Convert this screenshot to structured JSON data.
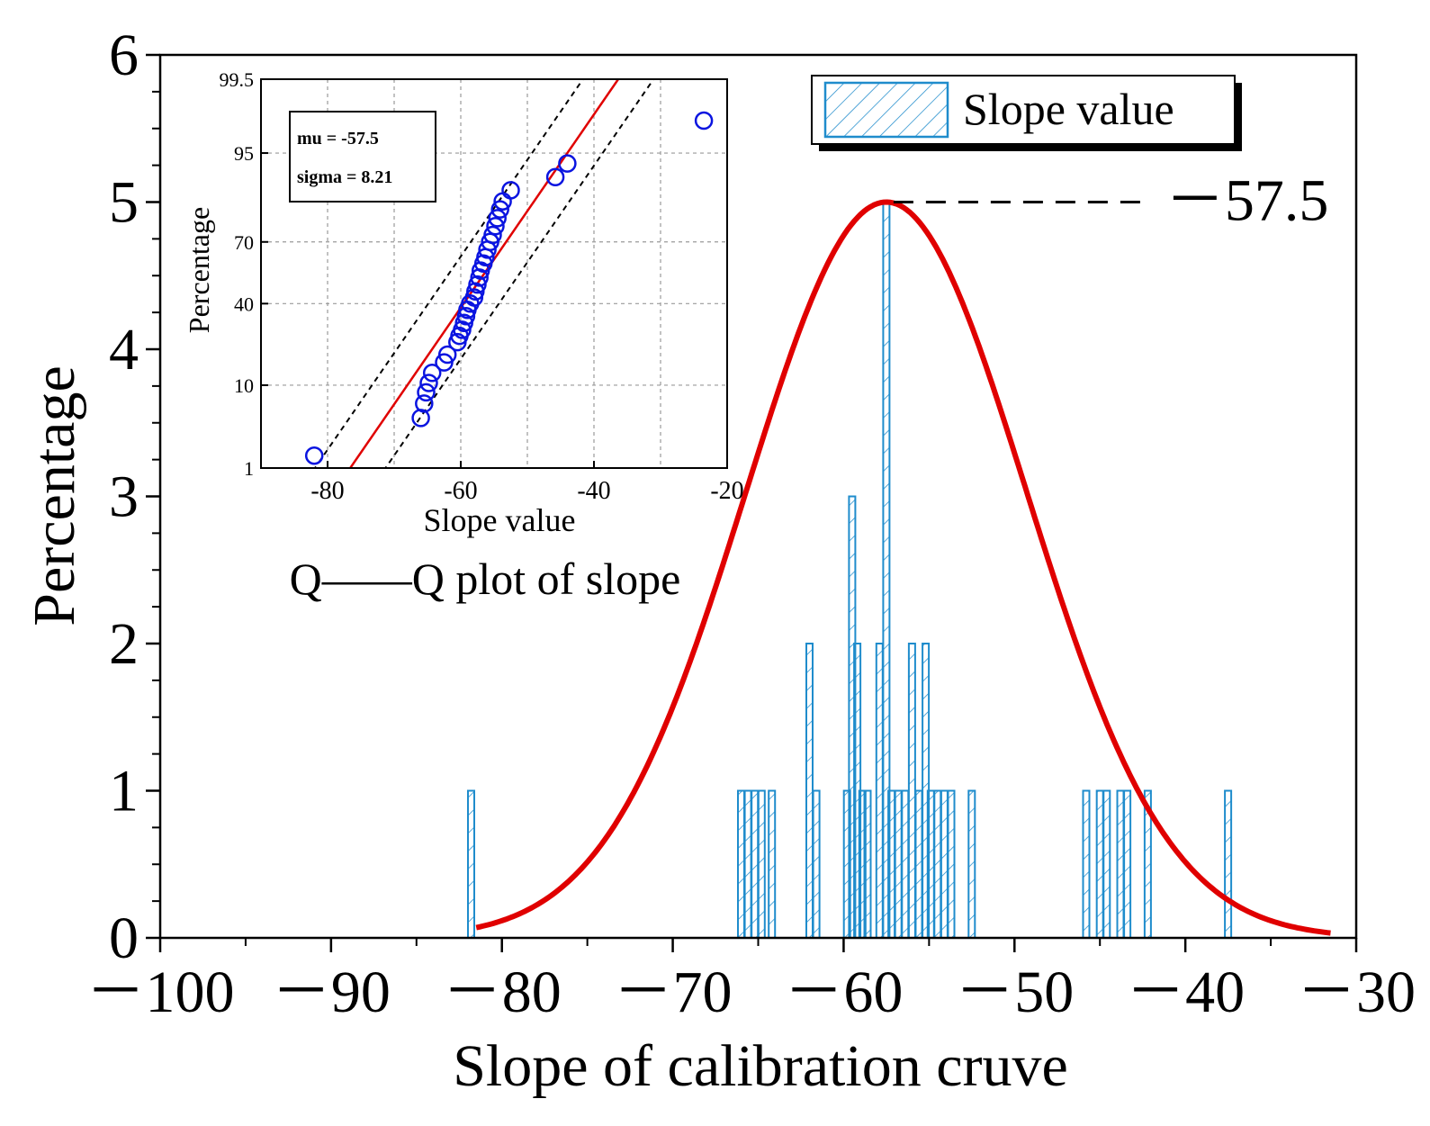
{
  "chart_data": [
    {
      "type": "bar",
      "title": "",
      "xlabel": "Slope of calibration cruve",
      "ylabel": "Percentage",
      "xlim": [
        -100,
        -30
      ],
      "ylim": [
        0,
        6
      ],
      "x_ticks": [
        -100,
        -90,
        -80,
        -70,
        -60,
        -50,
        -40,
        -30
      ],
      "x_tick_labels": [
        "－100",
        "－90",
        "－80",
        "－70",
        "－60",
        "－50",
        "－40",
        "－30"
      ],
      "y_ticks": [
        0,
        1,
        2,
        3,
        4,
        5,
        6
      ],
      "y_tick_labels": [
        "0",
        "1",
        "2",
        "3",
        "4",
        "5",
        "6"
      ],
      "legend": {
        "position": "top-right",
        "entries": [
          "Slope value"
        ]
      },
      "series": [
        {
          "name": "Slope value",
          "kind": "histogram",
          "x": [
            -81.8,
            -66,
            -65.6,
            -65.2,
            -64.8,
            -64.2,
            -62,
            -61.6,
            -59.8,
            -59.5,
            -59.2,
            -58.9,
            -58.6,
            -57.9,
            -57.5,
            -57.2,
            -56.8,
            -56.4,
            -56,
            -55.6,
            -55.2,
            -54.9,
            -54.5,
            -54.1,
            -53.7,
            -52.5,
            -45.8,
            -45,
            -44.6,
            -43.8,
            -43.4,
            -42.2,
            -37.5
          ],
          "values": [
            1,
            1,
            1,
            1,
            1,
            1,
            2,
            1,
            1,
            3,
            2,
            1,
            1,
            2,
            5,
            1,
            1,
            1,
            2,
            1,
            2,
            1,
            1,
            1,
            1,
            1,
            1,
            1,
            1,
            1,
            1,
            1,
            1
          ]
        },
        {
          "name": "Normal fit",
          "kind": "curve",
          "mu": -57.5,
          "sigma": 8.21,
          "x_range": [
            -81.5,
            -31.5
          ],
          "peak": 5
        }
      ],
      "annotations": [
        {
          "text": "－57.5",
          "target_x": -57.5,
          "target_y": 5
        }
      ]
    },
    {
      "type": "scatter",
      "title": "Q——Q plot of slope",
      "xlabel": "Slope value",
      "ylabel": "Percentage",
      "xlim": [
        -90,
        -20
      ],
      "x_ticks": [
        -80,
        -60,
        -40,
        -20
      ],
      "x_tick_labels": [
        "-80",
        "-60",
        "-40",
        "-20"
      ],
      "y_scale": "normal-probability",
      "y_ticks": [
        1,
        10,
        40,
        70,
        95,
        99.5
      ],
      "y_tick_labels": [
        "1",
        "10",
        "40",
        "70",
        "95",
        "99.5"
      ],
      "grid": true,
      "legend_box": {
        "lines": [
          "mu = -57.5",
          "sigma = 8.21"
        ]
      },
      "points": [
        [
          -82,
          1.5
        ],
        [
          -66,
          4.5
        ],
        [
          -65.5,
          6.5
        ],
        [
          -65.2,
          8.5
        ],
        [
          -64.8,
          10.5
        ],
        [
          -64.3,
          13
        ],
        [
          -62.5,
          16
        ],
        [
          -62,
          18.5
        ],
        [
          -60.5,
          23
        ],
        [
          -60.2,
          25.5
        ],
        [
          -59.8,
          28
        ],
        [
          -59.5,
          31
        ],
        [
          -59.2,
          34
        ],
        [
          -59,
          37
        ],
        [
          -58.6,
          40
        ],
        [
          -58,
          43
        ],
        [
          -57.8,
          46
        ],
        [
          -57.5,
          49.5
        ],
        [
          -57.2,
          53
        ],
        [
          -57,
          56.5
        ],
        [
          -56.6,
          60
        ],
        [
          -56.3,
          63
        ],
        [
          -56,
          66.5
        ],
        [
          -55.6,
          70
        ],
        [
          -55.2,
          73
        ],
        [
          -54.8,
          76.5
        ],
        [
          -54.5,
          79.5
        ],
        [
          -54.1,
          82.5
        ],
        [
          -53.7,
          85
        ],
        [
          -52.5,
          88
        ],
        [
          -45.8,
          91
        ],
        [
          -44,
          93.5
        ],
        [
          -23.5,
          98
        ]
      ],
      "fit_line": {
        "mu": -57.5,
        "sigma": 8.21
      },
      "confidence_band": {
        "offset_x": 5.3
      }
    }
  ],
  "main_labels": {
    "annotation": "－57.5",
    "legend": "Slope value",
    "xlabel": "Slope of calibration cruve",
    "ylabel": "Percentage"
  },
  "inset_labels": {
    "caption": "Q——Q plot of slope",
    "xlabel": "Slope value",
    "ylabel": "Percentage",
    "mu_text": "mu = -57.5",
    "sigma_text": "sigma = 8.21"
  },
  "colors": {
    "axis": "#000000",
    "bar": "#1f8ccc",
    "curve": "#e00000",
    "inset_points": "#0a14e0",
    "inset_line": "#e00000",
    "grid": "#9a9a9a"
  }
}
